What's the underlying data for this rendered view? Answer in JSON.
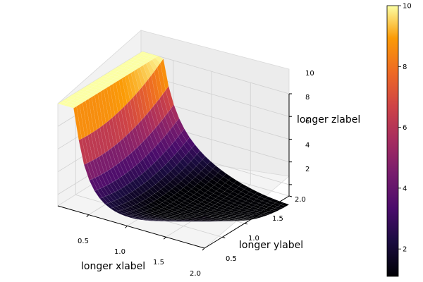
{
  "chart_data": {
    "type": "surface",
    "colormap": "inferno",
    "function": "(x - y)^2 + x^(-2)",
    "x_range": [
      0.1,
      2.0
    ],
    "y_range": [
      0.1,
      2.0
    ],
    "zlim": [
      1,
      10
    ],
    "title": "",
    "xlabel": "longer xlabel",
    "ylabel": "longer ylabel",
    "zlabel": "longer zlabel",
    "x_ticks": [
      "0.5",
      "1.0",
      "1.5",
      "2.0"
    ],
    "y_ticks": [
      "0.5",
      "1.0",
      "1.5",
      "2.0"
    ],
    "z_ticks": [
      "2",
      "4",
      "6",
      "8",
      "10"
    ],
    "colorbar_ticks": [
      "2",
      "4",
      "6",
      "8",
      "10"
    ],
    "colorbar_range": [
      1.1,
      10
    ],
    "grid": true,
    "legend": "none"
  }
}
